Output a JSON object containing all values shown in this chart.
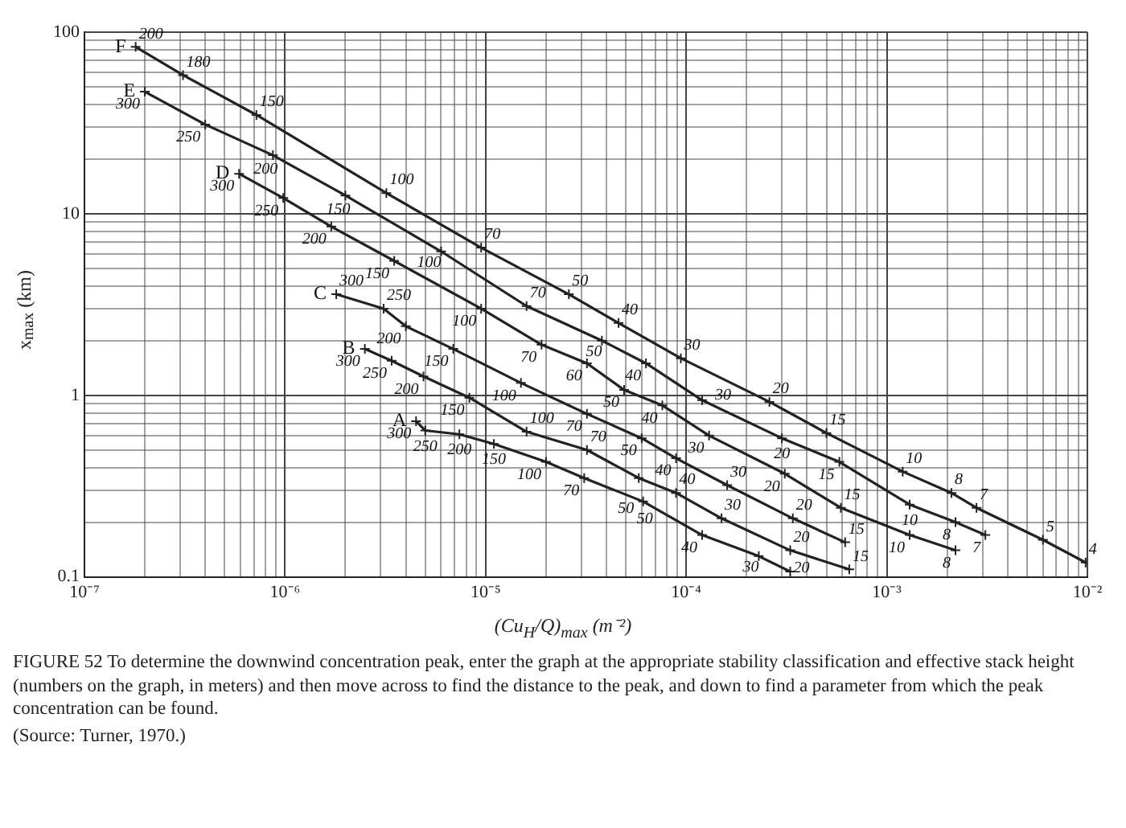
{
  "chart_data": {
    "type": "line",
    "xlabel": "(Cu$_{H}$/Q)$_{max}$ (m⁻²)",
    "ylabel": "x$_{max}$ (km)",
    "log": "xy",
    "grid": true,
    "legend": false,
    "marker": "cross",
    "line_style": "solid",
    "xlim": [
      1e-07,
      0.01
    ],
    "ylim": [
      0.1,
      100
    ],
    "xticks": [
      {
        "value": 1e-07,
        "label": "10⁻⁷"
      },
      {
        "value": 2e-07,
        "label": null
      },
      {
        "value": 3e-07,
        "label": null
      },
      {
        "value": 4e-07,
        "label": null
      },
      {
        "value": 5e-07,
        "label": null
      },
      {
        "value": 6e-07,
        "label": null
      },
      {
        "value": 7e-07,
        "label": null
      },
      {
        "value": 8e-07,
        "label": null
      },
      {
        "value": 9e-07,
        "label": null
      },
      {
        "value": 1e-06,
        "label": "10⁻⁶"
      },
      {
        "value": 2e-06,
        "label": null
      },
      {
        "value": 3e-06,
        "label": null
      },
      {
        "value": 4e-06,
        "label": null
      },
      {
        "value": 5e-06,
        "label": null
      },
      {
        "value": 6e-06,
        "label": null
      },
      {
        "value": 7e-06,
        "label": null
      },
      {
        "value": 8e-06,
        "label": null
      },
      {
        "value": 9e-06,
        "label": null
      },
      {
        "value": 1e-05,
        "label": "10⁻⁵"
      },
      {
        "value": 2e-05,
        "label": null
      },
      {
        "value": 3e-05,
        "label": null
      },
      {
        "value": 4e-05,
        "label": null
      },
      {
        "value": 5e-05,
        "label": null
      },
      {
        "value": 6e-05,
        "label": null
      },
      {
        "value": 7e-05,
        "label": null
      },
      {
        "value": 8e-05,
        "label": null
      },
      {
        "value": 9e-05,
        "label": null
      },
      {
        "value": 0.0001,
        "label": "10⁻⁴"
      },
      {
        "value": 0.0002,
        "label": null
      },
      {
        "value": 0.0003,
        "label": null
      },
      {
        "value": 0.0004,
        "label": null
      },
      {
        "value": 0.0005,
        "label": null
      },
      {
        "value": 0.0006,
        "label": null
      },
      {
        "value": 0.0007,
        "label": null
      },
      {
        "value": 0.0008,
        "label": null
      },
      {
        "value": 0.0009,
        "label": null
      },
      {
        "value": 0.001,
        "label": "10⁻³"
      },
      {
        "value": 0.002,
        "label": null
      },
      {
        "value": 0.003,
        "label": null
      },
      {
        "value": 0.004,
        "label": null
      },
      {
        "value": 0.005,
        "label": null
      },
      {
        "value": 0.006,
        "label": null
      },
      {
        "value": 0.007,
        "label": null
      },
      {
        "value": 0.008,
        "label": null
      },
      {
        "value": 0.009,
        "label": null
      },
      {
        "value": 0.01,
        "label": "10⁻²"
      }
    ],
    "yticks": [
      0.1,
      {
        "value": 0.2,
        "label": null
      },
      {
        "value": 0.3,
        "label": null
      },
      {
        "value": 0.4,
        "label": null
      },
      {
        "value": 0.5,
        "label": null
      },
      {
        "value": 0.6,
        "label": null
      },
      {
        "value": 0.7,
        "label": null
      },
      {
        "value": 0.8,
        "label": null
      },
      {
        "value": 0.9,
        "label": null
      },
      1,
      {
        "value": 2,
        "label": null
      },
      {
        "value": 3,
        "label": null
      },
      {
        "value": 4,
        "label": null
      },
      {
        "value": 5,
        "label": null
      },
      {
        "value": 6,
        "label": null
      },
      {
        "value": 7,
        "label": null
      },
      {
        "value": 8,
        "label": null
      },
      {
        "value": 9,
        "label": null
      },
      10,
      {
        "value": 20,
        "label": null
      },
      {
        "value": 30,
        "label": null
      },
      {
        "value": 40,
        "label": null
      },
      {
        "value": 50,
        "label": null
      },
      {
        "value": 60,
        "label": null
      },
      {
        "value": 70,
        "label": null
      },
      {
        "value": 80,
        "label": null
      },
      {
        "value": 90,
        "label": null
      },
      100
    ],
    "series": [
      {
        "name": "F",
        "color": "#222222",
        "x": [
          1.8e-07,
          3.1e-07,
          7.2e-07,
          3.2e-06,
          9.5e-06,
          2.6e-05,
          4.6e-05,
          9.4e-05,
          0.00026,
          0.0005,
          0.0012,
          0.0021,
          0.0028,
          0.006,
          0.0098
        ],
        "values": [
          83,
          58,
          35,
          13,
          6.5,
          3.6,
          2.5,
          1.6,
          0.92,
          0.62,
          0.38,
          0.29,
          0.24,
          0.16,
          0.12
        ]
      },
      {
        "name": "E",
        "color": "#222222",
        "x": [
          2e-07,
          4e-07,
          8.7e-07,
          2e-06,
          6e-06,
          1.6e-05,
          3.8e-05,
          6.3e-05,
          0.00012,
          0.0003,
          0.00058,
          0.0013,
          0.0022,
          0.0031
        ],
        "values": [
          47,
          31,
          21,
          12.6,
          6.2,
          3.1,
          2.0,
          1.5,
          0.94,
          0.58,
          0.43,
          0.25,
          0.2,
          0.17
        ]
      },
      {
        "name": "D",
        "color": "#222222",
        "x": [
          5.9e-07,
          9.8e-07,
          1.7e-06,
          3.5e-06,
          9.5e-06,
          1.9e-05,
          3.2e-05,
          4.9e-05,
          7.6e-05,
          0.00013,
          0.00031,
          0.00059,
          0.0013,
          0.0022
        ],
        "values": [
          16.6,
          12.2,
          8.5,
          5.5,
          3.0,
          1.9,
          1.5,
          1.07,
          0.88,
          0.6,
          0.37,
          0.24,
          0.17,
          0.14
        ]
      },
      {
        "name": "C",
        "color": "#222222",
        "x": [
          1.8e-06,
          3.1e-06,
          4e-06,
          6.9e-06,
          1.5e-05,
          3.2e-05,
          6e-05,
          8.9e-05,
          0.00016,
          0.00034,
          0.00062
        ],
        "values": [
          3.6,
          3.0,
          2.4,
          1.8,
          1.17,
          0.79,
          0.58,
          0.45,
          0.32,
          0.21,
          0.155
        ]
      },
      {
        "name": "B",
        "color": "#222222",
        "x": [
          2.5e-06,
          3.4e-06,
          4.9e-06,
          8.3e-06,
          1.6e-05,
          3.2e-05,
          5.8e-05,
          8.9e-05,
          0.00015,
          0.00033,
          0.00065
        ],
        "values": [
          1.8,
          1.55,
          1.27,
          0.97,
          0.63,
          0.5,
          0.35,
          0.29,
          0.21,
          0.14,
          0.11
        ]
      },
      {
        "name": "A",
        "color": "#222222",
        "x": [
          4.5e-06,
          5e-06,
          7.4e-06,
          1.1e-05,
          2e-05,
          3.1e-05,
          6.1e-05,
          0.00012,
          0.00023,
          0.00033
        ],
        "values": [
          0.72,
          0.64,
          0.61,
          0.54,
          0.43,
          0.35,
          0.26,
          0.17,
          0.13,
          0.107
        ]
      }
    ],
    "annotations": [
      "FIGURE 52 To determine the downwind concentration peak, enter the graph at the appropriate stability classification and effective stack height (numbers on the graph, in meters) and then move across to find the distance to the peak, and down to find a parameter from which the peak concentration can be found.",
      "(Source: Turner, 1970.)",
      {
        "text": "200",
        "x": 1.8e-07,
        "y": 83
      },
      {
        "text": "180",
        "x": 3.1e-07,
        "y": 58
      },
      {
        "text": "150",
        "x": 7.2e-07,
        "y": 35
      },
      {
        "text": "100",
        "x": 3.2e-06,
        "y": 13
      },
      {
        "text": "70",
        "x": 9.5e-06,
        "y": 6.5
      },
      {
        "text": "50",
        "x": 2.6e-05,
        "y": 3.6
      },
      {
        "text": "40",
        "x": 4.6e-05,
        "y": 2.5
      },
      {
        "text": "30",
        "x": 9.4e-05,
        "y": 1.6
      },
      {
        "text": "20",
        "x": 0.00026,
        "y": 0.92
      },
      {
        "text": "15",
        "x": 0.0005,
        "y": 0.62
      },
      {
        "text": "10",
        "x": 0.0012,
        "y": 0.38
      },
      {
        "text": "8",
        "x": 0.0021,
        "y": 0.29
      },
      {
        "text": "7",
        "x": 0.0028,
        "y": 0.24
      },
      {
        "text": "5",
        "x": 0.006,
        "y": 0.16
      },
      {
        "text": "4",
        "x": 0.0098,
        "y": 0.12
      },
      {
        "text": "300",
        "x": 2e-07,
        "y": 47
      },
      {
        "text": "250",
        "x": 4e-07,
        "y": 31
      },
      {
        "text": "200",
        "x": 8.7e-07,
        "y": 21
      },
      {
        "text": "150",
        "x": 2e-06,
        "y": 12.6
      },
      {
        "text": "100",
        "x": 6e-06,
        "y": 6.2
      },
      {
        "text": "70",
        "x": 1.6e-05,
        "y": 3.1
      },
      {
        "text": "50",
        "x": 3.8e-05,
        "y": 2.0
      },
      {
        "text": "40",
        "x": 6.3e-05,
        "y": 1.5
      },
      {
        "text": "30",
        "x": 0.00012,
        "y": 0.94
      },
      {
        "text": "20",
        "x": 0.0003,
        "y": 0.58
      },
      {
        "text": "15",
        "x": 0.00058,
        "y": 0.43
      },
      {
        "text": "10",
        "x": 0.0013,
        "y": 0.25
      },
      {
        "text": "8",
        "x": 0.0022,
        "y": 0.2
      },
      {
        "text": "7",
        "x": 0.0031,
        "y": 0.17
      },
      {
        "text": "300",
        "x": 5.9e-07,
        "y": 16.6
      },
      {
        "text": "250",
        "x": 9.8e-07,
        "y": 12.2
      },
      {
        "text": "200",
        "x": 1.7e-06,
        "y": 8.5
      },
      {
        "text": "150",
        "x": 3.5e-06,
        "y": 5.5
      },
      {
        "text": "100",
        "x": 9.5e-06,
        "y": 3.0
      },
      {
        "text": "70",
        "x": 1.9e-05,
        "y": 1.9
      },
      {
        "text": "60",
        "x": 3.2e-05,
        "y": 1.5
      },
      {
        "text": "50",
        "x": 4.9e-05,
        "y": 1.07
      },
      {
        "text": "40",
        "x": 7.6e-05,
        "y": 0.88
      },
      {
        "text": "30",
        "x": 0.00013,
        "y": 0.6
      },
      {
        "text": "20",
        "x": 0.00031,
        "y": 0.37
      },
      {
        "text": "15",
        "x": 0.00059,
        "y": 0.24
      },
      {
        "text": "10",
        "x": 0.0013,
        "y": 0.17
      },
      {
        "text": "8",
        "x": 0.0022,
        "y": 0.14
      },
      {
        "text": "300",
        "x": 1.8e-06,
        "y": 3.6
      },
      {
        "text": "250",
        "x": 3.1e-06,
        "y": 3.0
      },
      {
        "text": "200",
        "x": 4e-06,
        "y": 2.4
      },
      {
        "text": "150",
        "x": 6.9e-06,
        "y": 1.8
      },
      {
        "text": "100",
        "x": 1.5e-05,
        "y": 1.17
      },
      {
        "text": "70",
        "x": 3.2e-05,
        "y": 0.79
      },
      {
        "text": "50",
        "x": 6e-05,
        "y": 0.58
      },
      {
        "text": "40",
        "x": 8.9e-05,
        "y": 0.45
      },
      {
        "text": "30",
        "x": 0.00016,
        "y": 0.32
      },
      {
        "text": "20",
        "x": 0.00034,
        "y": 0.21
      },
      {
        "text": "15",
        "x": 0.00062,
        "y": 0.155
      },
      {
        "text": "300",
        "x": 2.5e-06,
        "y": 1.8
      },
      {
        "text": "250",
        "x": 3.4e-06,
        "y": 1.55
      },
      {
        "text": "200",
        "x": 4.9e-06,
        "y": 1.27
      },
      {
        "text": "150",
        "x": 8.3e-06,
        "y": 0.97
      },
      {
        "text": "100",
        "x": 1.6e-05,
        "y": 0.63
      },
      {
        "text": "70",
        "x": 3.2e-05,
        "y": 0.5
      },
      {
        "text": "50",
        "x": 5.8e-05,
        "y": 0.35
      },
      {
        "text": "40",
        "x": 8.9e-05,
        "y": 0.29
      },
      {
        "text": "30",
        "x": 0.00015,
        "y": 0.21
      },
      {
        "text": "20",
        "x": 0.00033,
        "y": 0.14
      },
      {
        "text": "15",
        "x": 0.00065,
        "y": 0.11
      },
      {
        "text": "300",
        "x": 4.5e-06,
        "y": 0.72
      },
      {
        "text": "250",
        "x": 5e-06,
        "y": 0.64
      },
      {
        "text": "200",
        "x": 7.4e-06,
        "y": 0.61
      },
      {
        "text": "150",
        "x": 1.1e-05,
        "y": 0.54
      },
      {
        "text": "100",
        "x": 2e-05,
        "y": 0.43
      },
      {
        "text": "70",
        "x": 3.1e-05,
        "y": 0.35
      },
      {
        "text": "50",
        "x": 6.1e-05,
        "y": 0.26
      },
      {
        "text": "40",
        "x": 0.00012,
        "y": 0.17
      },
      {
        "text": "30",
        "x": 0.00023,
        "y": 0.13
      },
      {
        "text": "20",
        "x": 0.00033,
        "y": 0.107
      }
    ]
  }
}
